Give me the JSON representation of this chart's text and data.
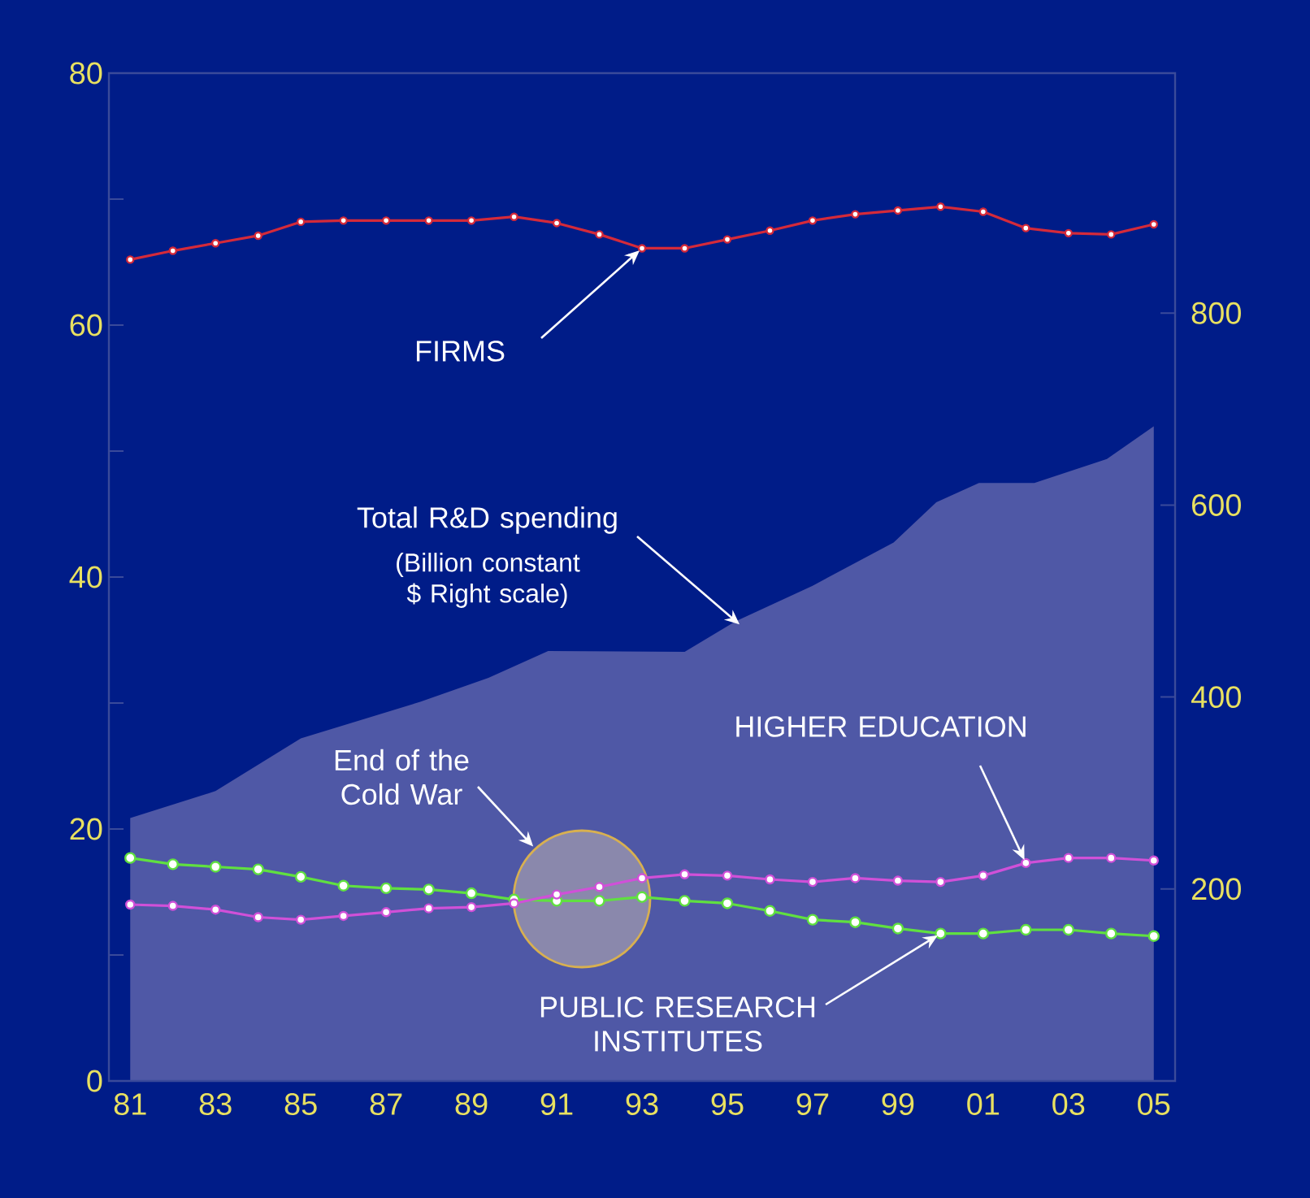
{
  "chart_data": {
    "type": "line",
    "x": [
      1981,
      1982,
      1983,
      1984,
      1985,
      1986,
      1987,
      1988,
      1989,
      1990,
      1991,
      1992,
      1993,
      1994,
      1995,
      1996,
      1997,
      1998,
      1999,
      2000,
      2001,
      2002,
      2003,
      2004,
      2005
    ],
    "xlim": [
      1980.5,
      2005.5
    ],
    "xticks": [
      {
        "value": 1981,
        "label": "81"
      },
      {
        "value": 1983,
        "label": "83"
      },
      {
        "value": 1985,
        "label": "85"
      },
      {
        "value": 1987,
        "label": "87"
      },
      {
        "value": 1989,
        "label": "89"
      },
      {
        "value": 1991,
        "label": "91"
      },
      {
        "value": 1993,
        "label": "93"
      },
      {
        "value": 1995,
        "label": "95"
      },
      {
        "value": 1997,
        "label": "97"
      },
      {
        "value": 1999,
        "label": "99"
      },
      {
        "value": 2001,
        "label": "01"
      },
      {
        "value": 2003,
        "label": "03"
      },
      {
        "value": 2005,
        "label": "05"
      }
    ],
    "ylim": [
      0,
      80
    ],
    "yticks": [
      0,
      {
        "value": 10,
        "label": null
      },
      20,
      {
        "value": 30,
        "label": null
      },
      40,
      {
        "value": 50,
        "label": null
      },
      60,
      {
        "value": 70,
        "label": null
      },
      80
    ],
    "y2lim": [
      0,
      1050
    ],
    "y2ticks": [
      200,
      400,
      600,
      800
    ],
    "marker": "circle",
    "series": [
      {
        "name": "Total R&D spending",
        "type": "area",
        "axis": "y2",
        "marker": "none",
        "color": "#4f58a6",
        "x": [
          1981,
          1983,
          1985,
          1987.8,
          1989.4,
          1990.8,
          1994,
          1995.2,
          1997,
          1998.9,
          1999.9,
          2000.9,
          2002.2,
          2003.9,
          2005
        ],
        "values": [
          274,
          302,
          357,
          395,
          420,
          448,
          447,
          479,
          516,
          561,
          603,
          623,
          623,
          648,
          682
        ]
      },
      {
        "name": "FIRMS",
        "color": "#d42a3a",
        "values": [
          65.2,
          65.9,
          66.5,
          67.1,
          68.2,
          68.3,
          68.3,
          68.3,
          68.3,
          68.6,
          68.1,
          67.2,
          66.1,
          66.1,
          66.8,
          67.5,
          68.3,
          68.8,
          69.1,
          69.4,
          69.0,
          67.7,
          67.3,
          67.2,
          68.0
        ]
      },
      {
        "name": "HIGHER EDUCATION",
        "color": "#d050d8",
        "values": [
          14.0,
          13.9,
          13.6,
          13.0,
          12.8,
          13.1,
          13.4,
          13.7,
          13.8,
          14.1,
          14.8,
          15.4,
          16.1,
          16.4,
          16.3,
          16.0,
          15.8,
          16.1,
          15.9,
          15.8,
          16.3,
          17.3,
          17.7,
          17.7,
          17.5
        ]
      },
      {
        "name": "PUBLIC RESEARCH INSTITUTES",
        "color": "#60e040",
        "values": [
          17.7,
          17.2,
          17.0,
          16.8,
          16.2,
          15.5,
          15.3,
          15.2,
          14.9,
          14.4,
          14.3,
          14.3,
          14.6,
          14.3,
          14.1,
          13.5,
          12.8,
          12.6,
          12.1,
          11.7,
          11.7,
          12.0,
          12.0,
          11.7,
          11.5
        ]
      }
    ],
    "annotations": [
      "(Billion constant $ Right scale)",
      "End of the Cold War"
    ]
  }
}
